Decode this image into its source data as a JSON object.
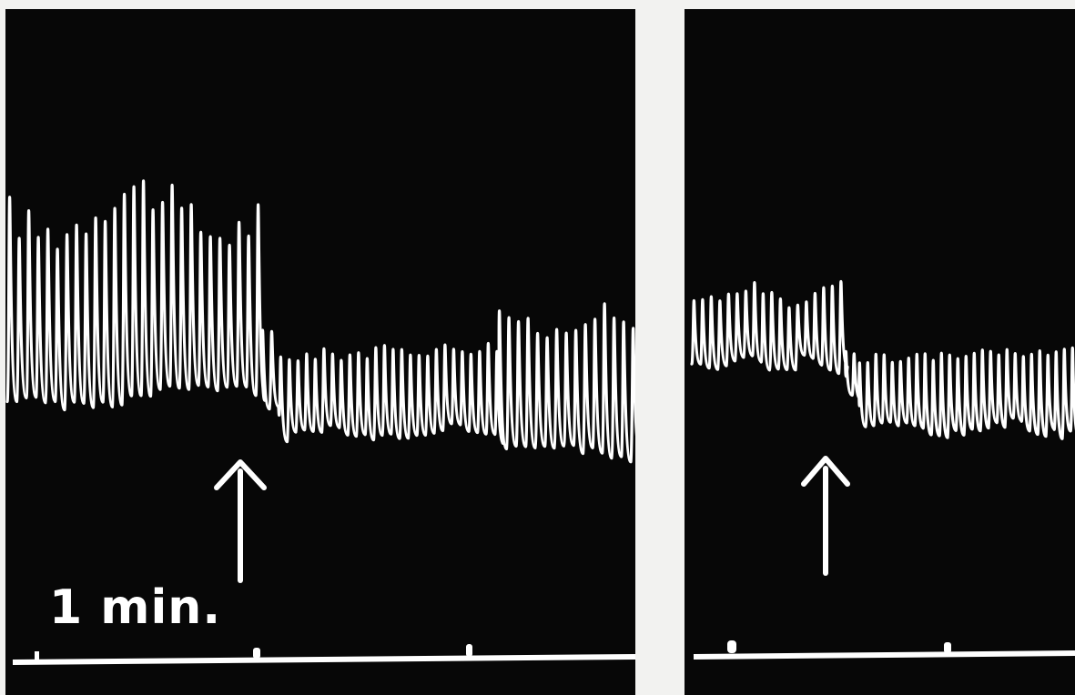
{
  "figure": {
    "scale_label": "1 min.",
    "colors": {
      "background": "#070707",
      "trace": "#ffffff",
      "gutter": "#f2f2f0"
    },
    "panels": [
      {
        "name": "left",
        "arrow": "up-arrow",
        "time_marks": 3
      },
      {
        "name": "right",
        "arrow": "up-arrow",
        "time_marks": 2
      }
    ]
  }
}
